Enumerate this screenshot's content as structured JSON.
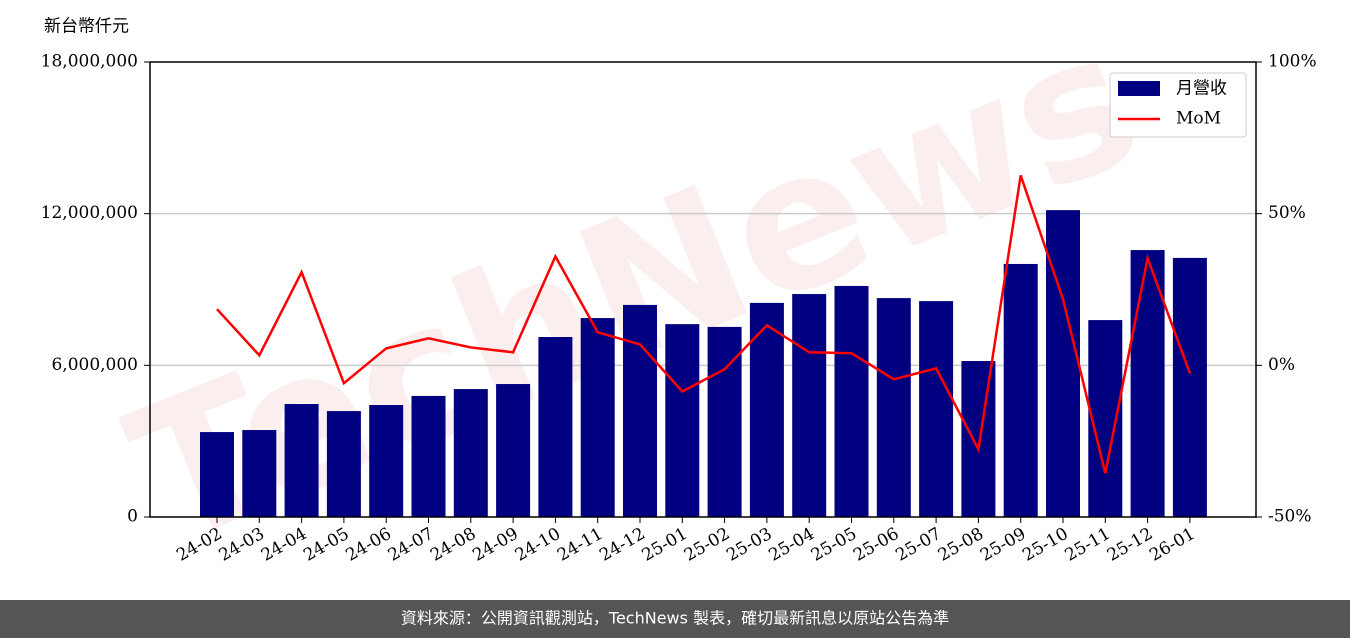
{
  "chart_data": {
    "type": "bar+line",
    "y_label": "新台幣仟元",
    "watermark": "TechNews",
    "footer": "資料來源：公開資訊觀測站，TechNews 製表，確切最新訊息以原站公告為準",
    "categories": [
      "24-02",
      "24-03",
      "24-04",
      "24-05",
      "24-06",
      "24-07",
      "24-08",
      "24-09",
      "24-10",
      "24-11",
      "24-12",
      "25-01",
      "25-02",
      "25-03",
      "25-04",
      "25-05",
      "25-06",
      "25-07",
      "25-08",
      "25-09",
      "25-10",
      "25-11",
      "25-12",
      "26-01"
    ],
    "series": [
      {
        "name": "月營收",
        "type": "bar",
        "color": "#000080",
        "values": [
          3360000,
          3440000,
          4470000,
          4190000,
          4430000,
          4790000,
          5060000,
          5260000,
          7120000,
          7870000,
          8390000,
          7630000,
          7520000,
          8470000,
          8820000,
          9140000,
          8660000,
          8540000,
          6170000,
          10010000,
          12140000,
          7790000,
          10560000,
          10250000
        ]
      },
      {
        "name": "MoM",
        "type": "line",
        "color": "#ff0000",
        "axis": "y2",
        "values": [
          18.5,
          3.3,
          30.7,
          -5.9,
          5.6,
          8.9,
          5.9,
          4.3,
          35.9,
          10.9,
          6.9,
          -8.6,
          -1.3,
          13.2,
          4.3,
          4.0,
          -4.6,
          -1.0,
          -27.7,
          62.6,
          21.8,
          -35.6,
          35.3,
          -2.6
        ]
      }
    ],
    "ylim": [
      0,
      18000000
    ],
    "yticks": [
      0,
      {
        "value": 6000000,
        "label": "6,000,000"
      },
      {
        "value": 12000000,
        "label": "12,000,000"
      },
      {
        "value": 18000000,
        "label": "18,000,000"
      }
    ],
    "y2lim": [
      -50,
      100
    ],
    "y2ticks": [
      {
        "value": -50,
        "label": "-50%"
      },
      {
        "value": 0,
        "label": "0%"
      },
      {
        "value": 50,
        "label": "50%"
      },
      {
        "value": 100,
        "label": "100%"
      }
    ],
    "grid": true,
    "legend": "upper right"
  }
}
